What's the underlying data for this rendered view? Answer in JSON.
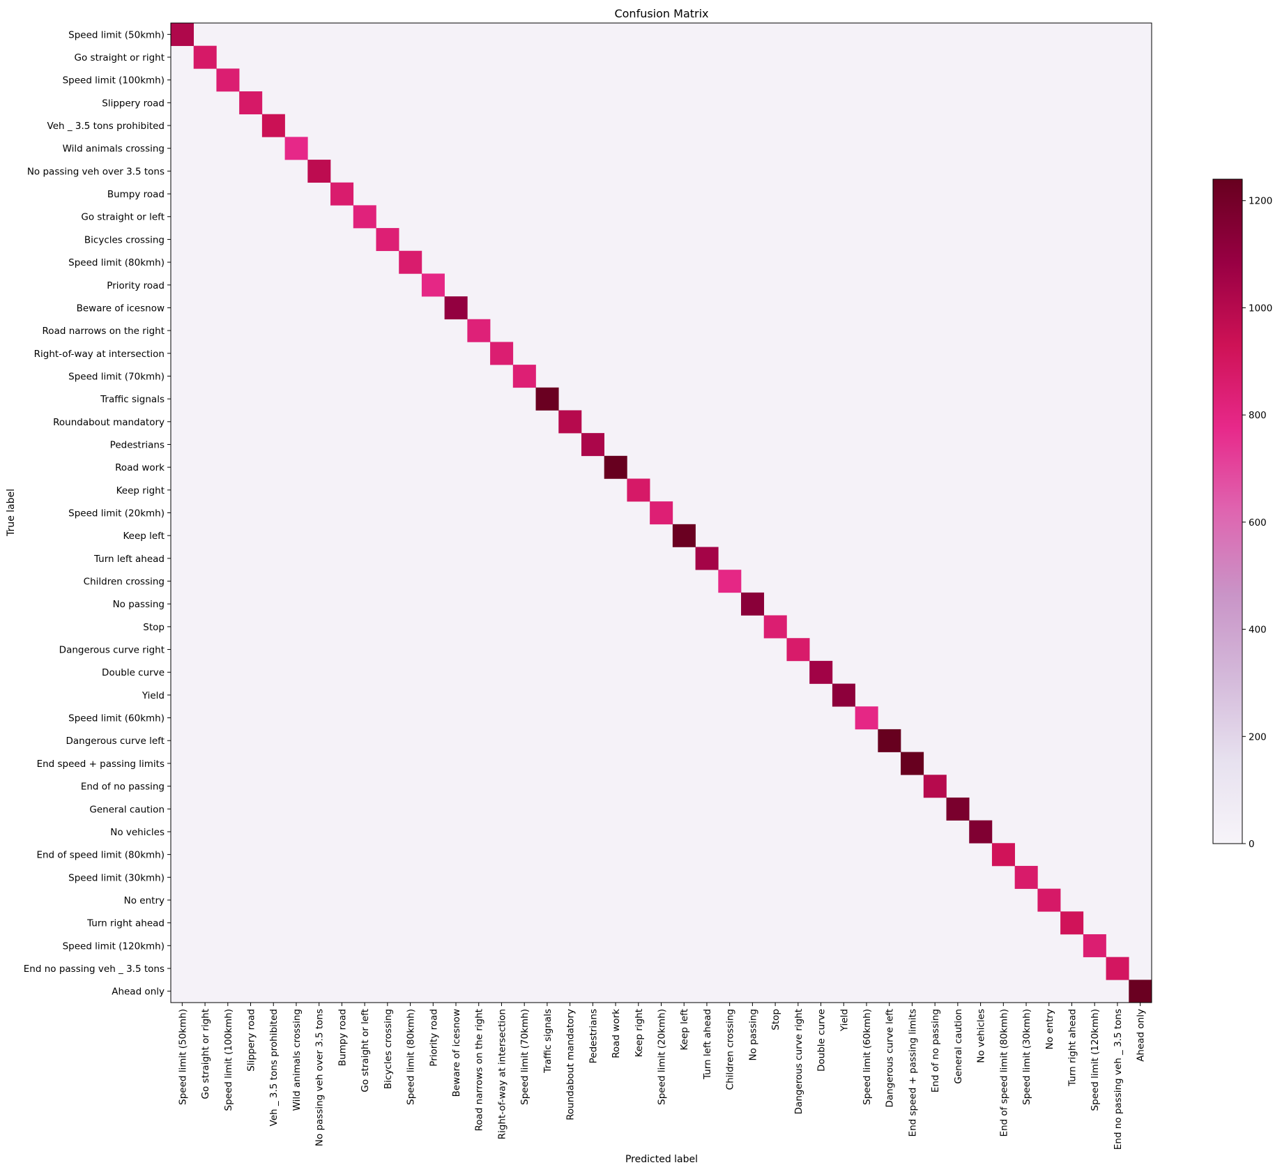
{
  "chart_data": {
    "type": "heatmap",
    "title": "Confusion Matrix",
    "xlabel": "Predicted label",
    "ylabel": "True label",
    "colormap": "PuRd",
    "grid": false,
    "legend": "colorbar-right",
    "colorbar": {
      "min": 0,
      "max": 1240,
      "ticks": [
        0,
        200,
        400,
        600,
        800,
        1000,
        1200
      ]
    },
    "labels": [
      "Speed limit (50kmh)",
      "Go straight or right",
      "Speed limit (100kmh)",
      "Slippery road",
      "Veh _ 3.5 tons prohibited",
      "Wild animals crossing",
      "No passing veh over 3.5 tons",
      "Bumpy road",
      "Go straight or left",
      "Bicycles crossing",
      "Speed limit (80kmh)",
      "Priority road",
      "Beware of icesnow",
      "Road narrows on the right",
      "Right-of-way at intersection",
      "Speed limit (70kmh)",
      "Traffic signals",
      "Roundabout mandatory",
      "Pedestrians",
      "Road work",
      "Keep right",
      "Speed limit (20kmh)",
      "Keep left",
      "Turn left ahead",
      "Children crossing",
      "No passing",
      "Stop",
      "Dangerous curve right",
      "Double curve",
      "Yield",
      "Speed limit (60kmh)",
      "Dangerous curve left",
      "End speed + passing limits",
      "End of no passing",
      "General caution",
      "No vehicles",
      "End of speed limit (80kmh)",
      "Speed limit (30kmh)",
      "No entry",
      "Turn right ahead",
      "Speed limit (120kmh)",
      "End no passing veh _ 3.5 tons",
      "Ahead only"
    ],
    "diagonal": [
      1020,
      880,
      850,
      880,
      940,
      780,
      980,
      860,
      820,
      840,
      860,
      790,
      1100,
      830,
      850,
      840,
      1230,
      1000,
      1030,
      1240,
      880,
      840,
      1230,
      1050,
      790,
      1130,
      850,
      870,
      1060,
      1120,
      790,
      1240,
      1240,
      1000,
      1180,
      1160,
      920,
      870,
      880,
      920,
      850,
      900,
      1230
    ],
    "offdiag_value": 15
  }
}
